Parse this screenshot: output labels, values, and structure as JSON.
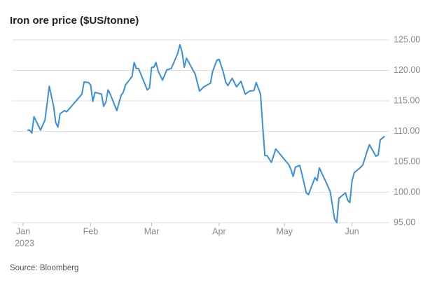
{
  "chart_data": {
    "type": "line",
    "title": "Iron ore price ($US/tonne)",
    "source": "Source: Bloomberg",
    "year": "2023",
    "x": [
      2,
      3,
      4,
      5,
      8,
      10,
      11,
      12,
      14,
      15,
      16,
      17,
      19,
      20,
      27,
      28,
      30,
      31,
      32,
      33,
      36,
      37,
      38,
      39,
      40,
      43,
      45,
      46,
      47,
      50,
      51,
      52,
      53,
      57,
      58,
      59,
      60,
      61,
      62,
      64,
      66,
      68,
      71,
      72,
      73,
      74,
      75,
      79,
      81,
      83,
      86,
      87,
      89,
      90,
      92,
      93,
      94,
      96,
      98,
      100,
      102,
      104,
      106,
      107,
      109,
      110,
      111,
      112,
      114,
      116,
      122,
      123,
      124,
      125,
      127,
      128,
      130,
      131,
      134,
      135,
      136,
      139,
      141,
      143,
      144,
      145,
      148,
      149,
      150,
      151,
      152,
      155,
      156,
      158,
      159,
      162,
      163,
      164,
      166
    ],
    "values": [
      110.2,
      110.2,
      109.7,
      112.4,
      110.2,
      111.8,
      114.5,
      117.4,
      114.1,
      111.4,
      110.7,
      112.9,
      113.4,
      113.2,
      116.1,
      118.1,
      118.0,
      117.6,
      114.9,
      116.4,
      116.1,
      114.1,
      114.8,
      116.8,
      116.1,
      113.4,
      115.9,
      116.4,
      117.6,
      119.0,
      121.3,
      120.3,
      120.3,
      116.8,
      117.1,
      120.5,
      120.5,
      121.3,
      119.9,
      118.4,
      120.1,
      120.3,
      122.8,
      124.2,
      123.0,
      120.5,
      122.0,
      119.4,
      116.6,
      117.3,
      117.9,
      119.8,
      121.7,
      121.8,
      119.6,
      118.1,
      117.5,
      118.7,
      117.3,
      118.2,
      116.1,
      116.6,
      116.7,
      118.0,
      116.1,
      110.9,
      106.0,
      106.0,
      104.9,
      107.1,
      104.5,
      103.7,
      102.6,
      104.1,
      104.4,
      103.0,
      99.9,
      99.6,
      102.4,
      101.9,
      104.0,
      101.7,
      100.1,
      95.6,
      95.0,
      99.0,
      99.9,
      98.7,
      98.3,
      101.8,
      103.2,
      104.1,
      104.5,
      106.8,
      107.8,
      105.9,
      106.1,
      108.6,
      109.2
    ],
    "color": "#3a8fd9",
    "xlim": [
      0,
      168
    ],
    "xticks": [
      {
        "value": 0,
        "label": "Jan"
      },
      {
        "value": 31,
        "label": "Feb"
      },
      {
        "value": 59,
        "label": "Mar"
      },
      {
        "value": 90,
        "label": "Apr"
      },
      {
        "value": 120,
        "label": "May"
      },
      {
        "value": 151,
        "label": "Jun"
      }
    ],
    "ylim": [
      95,
      125
    ],
    "yticks": [
      {
        "value": 95,
        "label": "95.00"
      },
      {
        "value": 100,
        "label": "100.00"
      },
      {
        "value": 105,
        "label": "105.00"
      },
      {
        "value": 110,
        "label": "110.00"
      },
      {
        "value": 115,
        "label": "115.00"
      },
      {
        "value": 120,
        "label": "120.00"
      },
      {
        "value": 125,
        "label": "125.00"
      }
    ],
    "grid": true
  }
}
